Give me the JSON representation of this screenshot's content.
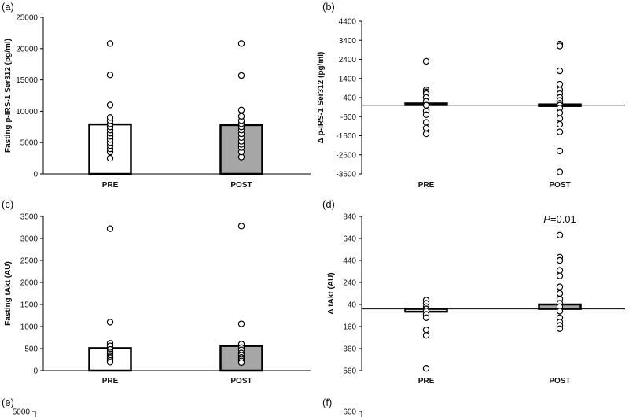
{
  "colors": {
    "pre_fill": "#ffffff",
    "post_fill": "#a6a6a6",
    "stroke": "#000000",
    "point_fill": "#ffffff"
  },
  "chart_data": [
    {
      "panel": "(a)",
      "type": "bar",
      "ylabel": "Fasting p-IRS-1 Ser312  (pg/ml)",
      "categories": [
        "PRE",
        "POST"
      ],
      "values": [
        7900,
        7800
      ],
      "ylim": [
        0,
        25000
      ],
      "yticks": [
        0,
        5000,
        10000,
        15000,
        20000,
        25000
      ],
      "zero_line": false,
      "points": [
        [
          2500,
          3500,
          4000,
          4500,
          5000,
          5500,
          6000,
          6500,
          7000,
          7500,
          8000,
          8500,
          9000,
          11000,
          15800,
          20800
        ],
        [
          2700,
          3500,
          4200,
          4700,
          5200,
          5800,
          6400,
          7000,
          7500,
          8000,
          8500,
          9200,
          10200,
          15700,
          20800
        ]
      ],
      "annotation": ""
    },
    {
      "panel": "(b)",
      "type": "bar",
      "ylabel": "Δ p-IRS-1 Ser312 (pg/ml)",
      "categories": [
        "PRE",
        "POST"
      ],
      "values": [
        50,
        0
      ],
      "ylim": [
        -3600,
        4400
      ],
      "yticks": [
        -3600,
        -2600,
        -1600,
        -600,
        400,
        1400,
        2400,
        3400,
        4400
      ],
      "zero_line": true,
      "points": [
        [
          2300,
          800,
          700,
          600,
          400,
          200,
          0,
          -300,
          -500,
          -900,
          -1200,
          -1500
        ],
        [
          3200,
          3100,
          1800,
          1100,
          800,
          600,
          400,
          250,
          100,
          0,
          -150,
          -400,
          -700,
          -1000,
          -1400,
          -2400,
          -3500
        ]
      ],
      "annotation": ""
    },
    {
      "panel": "(c)",
      "type": "bar",
      "ylabel": "Fasting  tAkt (AU)",
      "categories": [
        "PRE",
        "POST"
      ],
      "values": [
        510,
        560
      ],
      "ylim": [
        0,
        3500
      ],
      "yticks": [
        0,
        500,
        1000,
        1500,
        2000,
        2500,
        3000,
        3500
      ],
      "zero_line": false,
      "points": [
        [
          3220,
          1100,
          620,
          560,
          480,
          420,
          380,
          330,
          300,
          270,
          230,
          190
        ],
        [
          3280,
          1060,
          600,
          520,
          470,
          400,
          350,
          300,
          260,
          220,
          180
        ]
      ],
      "annotation": ""
    },
    {
      "panel": "(d)",
      "type": "bar",
      "ylabel": "Δ tAkt (AU)",
      "categories": [
        "PRE",
        "POST"
      ],
      "values": [
        -25,
        40
      ],
      "ylim": [
        -560,
        840
      ],
      "yticks": [
        -560,
        -360,
        -160,
        40,
        240,
        440,
        640,
        840
      ],
      "zero_line": true,
      "points": [
        [
          80,
          50,
          20,
          0,
          -20,
          -50,
          -80,
          -190,
          -240,
          -540
        ],
        [
          670,
          470,
          440,
          350,
          300,
          200,
          140,
          90,
          50,
          20,
          -20,
          -80,
          -120,
          -150,
          -180
        ]
      ],
      "annotation": "P=0.01"
    },
    {
      "panel": "(e)",
      "type": "bar",
      "ylabel": "",
      "categories": [],
      "values": [],
      "ylim": [
        0,
        5000
      ],
      "yticks": [
        5000
      ],
      "partial": true
    },
    {
      "panel": "(f)",
      "type": "bar",
      "ylabel": "",
      "categories": [],
      "values": [],
      "ylim": [
        0,
        600
      ],
      "yticks": [
        600
      ],
      "partial": true
    }
  ]
}
